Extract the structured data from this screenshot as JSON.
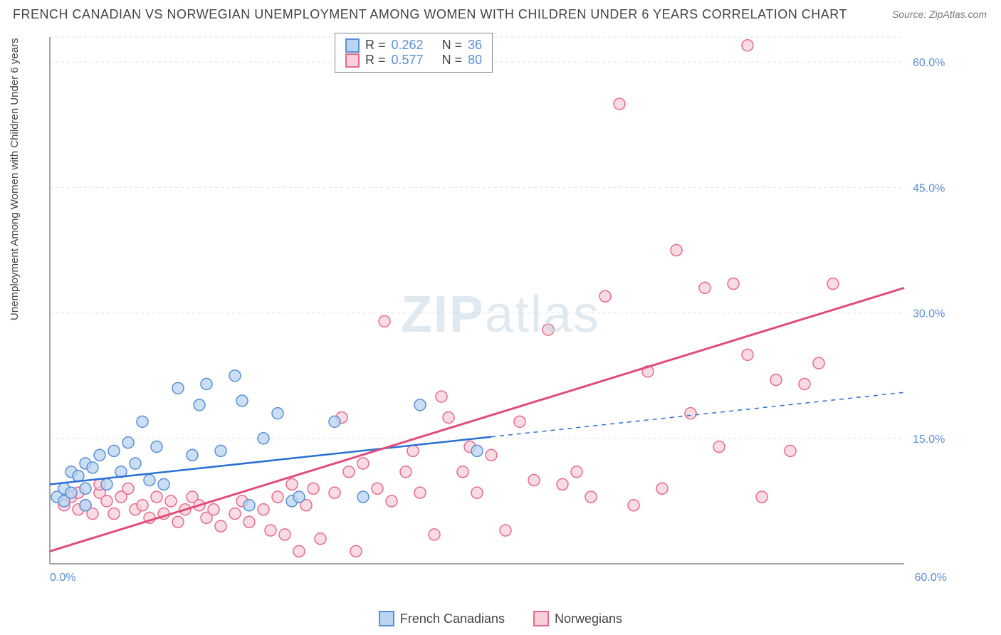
{
  "title_text": "FRENCH CANADIAN VS NORWEGIAN UNEMPLOYMENT AMONG WOMEN WITH CHILDREN UNDER 6 YEARS CORRELATION CHART",
  "source_text": "Source: ZipAtlas.com",
  "ylabel_text": "Unemployment Among Women with Children Under 6 years",
  "title_color": "#444444",
  "source_color": "#777777",
  "ylabel_color": "#444444",
  "tick_color": "#5a8fd6",
  "background": "#ffffff",
  "grid_color": "#e0e0e0",
  "axis_line_color": "#888888",
  "watermark_zip": "ZIP",
  "watermark_atlas": "atlas",
  "chart": {
    "type": "scatter-with-regression",
    "xlim": [
      0,
      60
    ],
    "ylim": [
      0,
      63
    ],
    "xticks": [
      {
        "v": 0,
        "l": "0.0%"
      },
      {
        "v": 60,
        "l": "60.0%"
      }
    ],
    "yticks": [
      {
        "v": 15,
        "l": "15.0%"
      },
      {
        "v": 30,
        "l": "30.0%"
      },
      {
        "v": 45,
        "l": "45.0%"
      },
      {
        "v": 60,
        "l": "60.0%"
      }
    ],
    "series": [
      {
        "key": "french_canadians",
        "label": "French Canadians",
        "R": "0.262",
        "N": "36",
        "marker_fill": "#b8d4f0",
        "marker_stroke": "#5a8fd6",
        "marker_radius": 8,
        "line_color": "#2a6fd6",
        "line_width": 2.5,
        "dash_after_x": 31,
        "reg_start": [
          0,
          9.5
        ],
        "reg_end": [
          60,
          20.5
        ],
        "points": [
          [
            0.5,
            8
          ],
          [
            1,
            9
          ],
          [
            1,
            7.5
          ],
          [
            1.5,
            8.5
          ],
          [
            1.5,
            11
          ],
          [
            2,
            10.5
          ],
          [
            2.5,
            9
          ],
          [
            2.5,
            12
          ],
          [
            2.5,
            7
          ],
          [
            3,
            11.5
          ],
          [
            3.5,
            13
          ],
          [
            4,
            9.5
          ],
          [
            4.5,
            13.5
          ],
          [
            5,
            11
          ],
          [
            5.5,
            14.5
          ],
          [
            6,
            12
          ],
          [
            6.5,
            17
          ],
          [
            7,
            10
          ],
          [
            7.5,
            14
          ],
          [
            8,
            9.5
          ],
          [
            9,
            21
          ],
          [
            10,
            13
          ],
          [
            10.5,
            19
          ],
          [
            11,
            21.5
          ],
          [
            12,
            13.5
          ],
          [
            13,
            22.5
          ],
          [
            13.5,
            19.5
          ],
          [
            14,
            7
          ],
          [
            15,
            15
          ],
          [
            16,
            18
          ],
          [
            17,
            7.5
          ],
          [
            17.5,
            8
          ],
          [
            20,
            17
          ],
          [
            22,
            8
          ],
          [
            26,
            19
          ],
          [
            30,
            13.5
          ]
        ]
      },
      {
        "key": "norwegians",
        "label": "Norwegians",
        "R": "0.577",
        "N": "80",
        "marker_fill": "#f7d0da",
        "marker_stroke": "#e76a8e",
        "marker_radius": 8,
        "line_color": "#e04d7a",
        "line_width": 3,
        "dash_after_x": 999,
        "reg_start": [
          0,
          1.5
        ],
        "reg_end": [
          60,
          33
        ],
        "points": [
          [
            1,
            7
          ],
          [
            1.5,
            8
          ],
          [
            2,
            6.5
          ],
          [
            2,
            8.5
          ],
          [
            2.5,
            7
          ],
          [
            3,
            6
          ],
          [
            3.5,
            8.5
          ],
          [
            3.5,
            9.5
          ],
          [
            4,
            7.5
          ],
          [
            4.5,
            6
          ],
          [
            5,
            8
          ],
          [
            5.5,
            9
          ],
          [
            6,
            6.5
          ],
          [
            6.5,
            7
          ],
          [
            7,
            5.5
          ],
          [
            7.5,
            8
          ],
          [
            8,
            6
          ],
          [
            8.5,
            7.5
          ],
          [
            9,
            5
          ],
          [
            9.5,
            6.5
          ],
          [
            10,
            8
          ],
          [
            10.5,
            7
          ],
          [
            11,
            5.5
          ],
          [
            11.5,
            6.5
          ],
          [
            12,
            4.5
          ],
          [
            13,
            6
          ],
          [
            13.5,
            7.5
          ],
          [
            14,
            5
          ],
          [
            15,
            6.5
          ],
          [
            15.5,
            4
          ],
          [
            16,
            8
          ],
          [
            16.5,
            3.5
          ],
          [
            17,
            9.5
          ],
          [
            17.5,
            1.5
          ],
          [
            18,
            7
          ],
          [
            18.5,
            9
          ],
          [
            19,
            3
          ],
          [
            20,
            8.5
          ],
          [
            20.5,
            17.5
          ],
          [
            21,
            11
          ],
          [
            21.5,
            1.5
          ],
          [
            22,
            12
          ],
          [
            23,
            9
          ],
          [
            23.5,
            29
          ],
          [
            24,
            7.5
          ],
          [
            25,
            11
          ],
          [
            25.5,
            13.5
          ],
          [
            26,
            8.5
          ],
          [
            27,
            3.5
          ],
          [
            27.5,
            20
          ],
          [
            28,
            17.5
          ],
          [
            29,
            11
          ],
          [
            29.5,
            14
          ],
          [
            30,
            8.5
          ],
          [
            31,
            13
          ],
          [
            32,
            4
          ],
          [
            33,
            17
          ],
          [
            34,
            10
          ],
          [
            35,
            28
          ],
          [
            36,
            9.5
          ],
          [
            37,
            11
          ],
          [
            38,
            8
          ],
          [
            39,
            32
          ],
          [
            40,
            55
          ],
          [
            41,
            7
          ],
          [
            42,
            23
          ],
          [
            43,
            9
          ],
          [
            44,
            37.5
          ],
          [
            45,
            18
          ],
          [
            46,
            33
          ],
          [
            47,
            14
          ],
          [
            48,
            33.5
          ],
          [
            49,
            25
          ],
          [
            50,
            8
          ],
          [
            51,
            22
          ],
          [
            52,
            13.5
          ],
          [
            53,
            21.5
          ],
          [
            54,
            24
          ],
          [
            55,
            33.5
          ],
          [
            49,
            62
          ]
        ]
      }
    ]
  },
  "stats_box": {
    "rows": [
      {
        "swatch_fill": "#b8d4f0",
        "swatch_stroke": "#5a8fd6",
        "r_lbl": "R =",
        "r_val": "0.262",
        "n_lbl": "N =",
        "n_val": "36"
      },
      {
        "swatch_fill": "#f7d0da",
        "swatch_stroke": "#e76a8e",
        "r_lbl": "R =",
        "r_val": "0.577",
        "n_lbl": "N =",
        "n_val": "80"
      }
    ]
  },
  "legend_items": [
    {
      "fill": "#b8d4f0",
      "stroke": "#5a8fd6",
      "label": "French Canadians"
    },
    {
      "fill": "#f7d0da",
      "stroke": "#e76a8e",
      "label": "Norwegians"
    }
  ]
}
